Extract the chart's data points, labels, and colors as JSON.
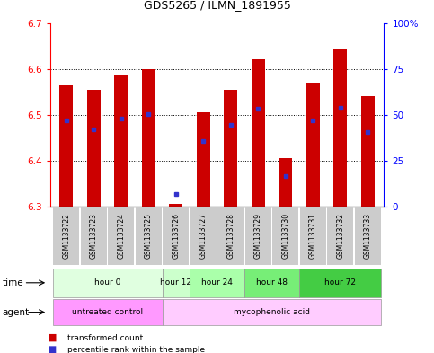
{
  "title": "GDS5265 / ILMN_1891955",
  "samples": [
    "GSM1133722",
    "GSM1133723",
    "GSM1133724",
    "GSM1133725",
    "GSM1133726",
    "GSM1133727",
    "GSM1133728",
    "GSM1133729",
    "GSM1133730",
    "GSM1133731",
    "GSM1133732",
    "GSM1133733"
  ],
  "bar_values": [
    6.565,
    6.555,
    6.585,
    6.6,
    6.305,
    6.505,
    6.555,
    6.62,
    6.405,
    6.57,
    6.645,
    6.54
  ],
  "bar_bottom": 6.3,
  "blue_values": [
    6.488,
    6.468,
    6.492,
    6.502,
    6.327,
    6.443,
    6.477,
    6.513,
    6.367,
    6.487,
    6.515,
    6.462
  ],
  "bar_color": "#cc0000",
  "blue_color": "#3333cc",
  "ylim_left": [
    6.3,
    6.7
  ],
  "ylim_right": [
    0,
    100
  ],
  "yticks_left": [
    6.3,
    6.4,
    6.5,
    6.6,
    6.7
  ],
  "yticks_right": [
    0,
    25,
    50,
    75,
    100
  ],
  "ytick_labels_right": [
    "0",
    "25",
    "50",
    "75",
    "100%"
  ],
  "grid_lines": [
    6.4,
    6.5,
    6.6
  ],
  "time_groups": [
    {
      "label": "hour 0",
      "start": 0,
      "end": 4,
      "color": "#e0ffe0"
    },
    {
      "label": "hour 12",
      "start": 4,
      "end": 5,
      "color": "#ccffcc"
    },
    {
      "label": "hour 24",
      "start": 5,
      "end": 7,
      "color": "#aaffaa"
    },
    {
      "label": "hour 48",
      "start": 7,
      "end": 9,
      "color": "#77ee77"
    },
    {
      "label": "hour 72",
      "start": 9,
      "end": 12,
      "color": "#44cc44"
    }
  ],
  "agent_groups": [
    {
      "label": "untreated control",
      "start": 0,
      "end": 4,
      "color": "#ff99ff"
    },
    {
      "label": "mycophenolic acid",
      "start": 4,
      "end": 12,
      "color": "#ffccff"
    }
  ],
  "sample_bg_color": "#cccccc",
  "legend_red_label": "transformed count",
  "legend_blue_label": "percentile rank within the sample",
  "bar_width": 0.5,
  "xlim_min": -0.6,
  "xlim_max": 11.6
}
